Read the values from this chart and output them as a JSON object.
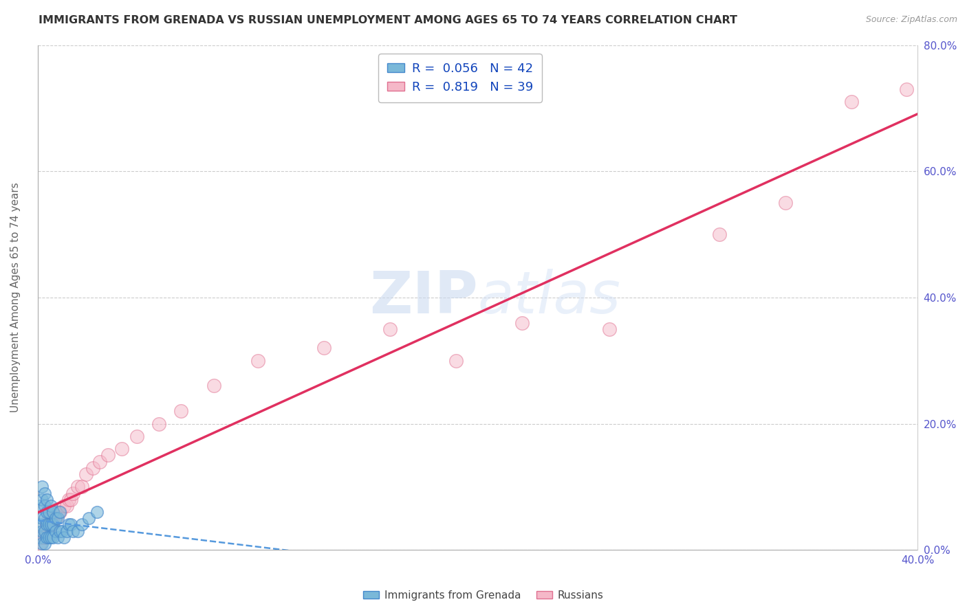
{
  "title": "IMMIGRANTS FROM GRENADA VS RUSSIAN UNEMPLOYMENT AMONG AGES 65 TO 74 YEARS CORRELATION CHART",
  "source": "Source: ZipAtlas.com",
  "ylabel": "Unemployment Among Ages 65 to 74 years",
  "xlim": [
    0.0,
    0.4
  ],
  "ylim": [
    0.0,
    0.8
  ],
  "xticks": [
    0.0,
    0.05,
    0.1,
    0.15,
    0.2,
    0.25,
    0.3,
    0.35,
    0.4
  ],
  "yticks": [
    0.0,
    0.2,
    0.4,
    0.6,
    0.8
  ],
  "xtick_labels": [
    "0.0%",
    "",
    "",
    "",
    "",
    "",
    "",
    "",
    "40.0%"
  ],
  "ytick_labels_right": [
    "0.0%",
    "20.0%",
    "40.0%",
    "60.0%",
    "80.0%"
  ],
  "series1_name": "Immigrants from Grenada",
  "series1_color": "#7ab8d9",
  "series1_edge": "#4488cc",
  "series1_R": "0.056",
  "series1_N": "42",
  "series2_name": "Russians",
  "series2_color": "#f5b8c8",
  "series2_edge": "#e07090",
  "series2_R": "0.819",
  "series2_N": "39",
  "watermark_zip": "ZIP",
  "watermark_atlas": "atlas",
  "background_color": "#ffffff",
  "grid_color": "#cccccc",
  "title_color": "#333333",
  "axis_label_color": "#5555cc",
  "trend1_color": "#5599dd",
  "trend2_color": "#e03060",
  "grenada_x": [
    0.001,
    0.001,
    0.001,
    0.002,
    0.002,
    0.002,
    0.002,
    0.002,
    0.003,
    0.003,
    0.003,
    0.003,
    0.003,
    0.004,
    0.004,
    0.004,
    0.004,
    0.005,
    0.005,
    0.005,
    0.006,
    0.006,
    0.006,
    0.007,
    0.007,
    0.007,
    0.008,
    0.008,
    0.009,
    0.009,
    0.01,
    0.01,
    0.011,
    0.012,
    0.013,
    0.014,
    0.015,
    0.016,
    0.018,
    0.02,
    0.023,
    0.027
  ],
  "grenada_y": [
    0.02,
    0.04,
    0.07,
    0.01,
    0.03,
    0.05,
    0.08,
    0.1,
    0.01,
    0.03,
    0.05,
    0.07,
    0.09,
    0.02,
    0.04,
    0.06,
    0.08,
    0.02,
    0.04,
    0.06,
    0.02,
    0.04,
    0.07,
    0.02,
    0.04,
    0.06,
    0.03,
    0.05,
    0.02,
    0.05,
    0.03,
    0.06,
    0.03,
    0.02,
    0.03,
    0.04,
    0.04,
    0.03,
    0.03,
    0.04,
    0.05,
    0.06
  ],
  "russian_x": [
    0.001,
    0.002,
    0.003,
    0.003,
    0.004,
    0.004,
    0.005,
    0.005,
    0.006,
    0.007,
    0.008,
    0.009,
    0.01,
    0.012,
    0.013,
    0.014,
    0.015,
    0.016,
    0.018,
    0.02,
    0.022,
    0.025,
    0.028,
    0.032,
    0.038,
    0.045,
    0.055,
    0.065,
    0.08,
    0.1,
    0.13,
    0.16,
    0.19,
    0.22,
    0.26,
    0.31,
    0.34,
    0.37,
    0.395
  ],
  "russian_y": [
    0.01,
    0.02,
    0.02,
    0.03,
    0.03,
    0.04,
    0.03,
    0.05,
    0.04,
    0.05,
    0.05,
    0.06,
    0.06,
    0.07,
    0.07,
    0.08,
    0.08,
    0.09,
    0.1,
    0.1,
    0.12,
    0.13,
    0.14,
    0.15,
    0.16,
    0.18,
    0.2,
    0.22,
    0.26,
    0.3,
    0.32,
    0.35,
    0.3,
    0.36,
    0.35,
    0.5,
    0.55,
    0.71,
    0.73
  ]
}
